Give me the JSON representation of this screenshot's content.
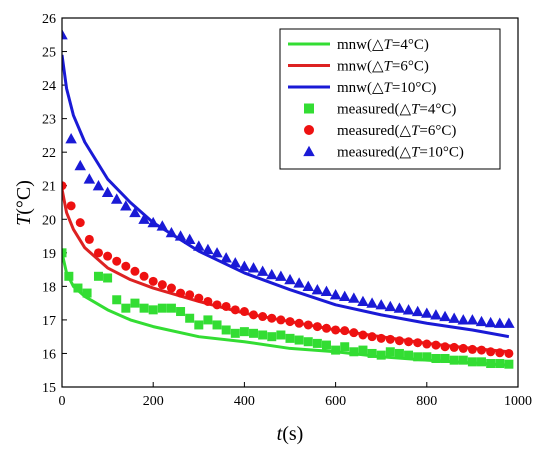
{
  "chart_data": {
    "type": "scatter",
    "xlabel": "t(s)",
    "xlabel_var": "t",
    "xlabel_unit": "(s)",
    "ylabel": "T(°C)",
    "ylabel_var": "T",
    "ylabel_unit": "(°C)",
    "xlim": [
      0,
      1000
    ],
    "ylim": [
      15,
      26
    ],
    "xticks": [
      0,
      200,
      400,
      600,
      800,
      1000
    ],
    "yticks": [
      15,
      16,
      17,
      18,
      19,
      20,
      21,
      22,
      23,
      24,
      25,
      26
    ],
    "grid": false,
    "legend_position": "top-right",
    "series": [
      {
        "name": "mnw(△T=4°C)",
        "prefix": "mnw(△",
        "var": "T",
        "suffix": "=4°C)",
        "kind": "line",
        "color": "#33dd33",
        "x": [
          0,
          10,
          25,
          50,
          100,
          150,
          200,
          300,
          400,
          500,
          600,
          700,
          800,
          900,
          980
        ],
        "y": [
          19.0,
          18.4,
          18.0,
          17.7,
          17.3,
          17.0,
          16.8,
          16.5,
          16.35,
          16.15,
          16.05,
          15.9,
          15.8,
          15.72,
          15.65
        ]
      },
      {
        "name": "mnw(△T=6°C)",
        "prefix": "mnw(△",
        "var": "T",
        "suffix": "=6°C)",
        "kind": "line",
        "color": "#dd2222",
        "x": [
          0,
          10,
          25,
          50,
          100,
          150,
          200,
          300,
          400,
          500,
          600,
          700,
          800,
          900,
          980
        ],
        "y": [
          20.9,
          20.2,
          19.7,
          19.15,
          18.55,
          18.2,
          17.95,
          17.55,
          17.2,
          16.95,
          16.7,
          16.5,
          16.3,
          16.15,
          16.05
        ]
      },
      {
        "name": "mnw(△T=10°C)",
        "prefix": "mnw(△",
        "var": "T",
        "suffix": "=10°C)",
        "kind": "line",
        "color": "#1a1ad6",
        "x": [
          0,
          10,
          25,
          50,
          100,
          150,
          200,
          300,
          400,
          500,
          600,
          700,
          800,
          900,
          980
        ],
        "y": [
          24.9,
          23.9,
          23.1,
          22.3,
          21.2,
          20.5,
          19.9,
          19.05,
          18.4,
          17.9,
          17.45,
          17.15,
          16.9,
          16.7,
          16.5
        ]
      },
      {
        "name": "measured(△T=4°C)",
        "prefix": "measured(△",
        "var": "T",
        "suffix": "=4°C)",
        "kind": "square",
        "color": "#33dd33",
        "x": [
          0,
          15,
          35,
          55,
          80,
          100,
          120,
          140,
          160,
          180,
          200,
          220,
          240,
          260,
          280,
          300,
          320,
          340,
          360,
          380,
          400,
          420,
          440,
          460,
          480,
          500,
          520,
          540,
          560,
          580,
          600,
          620,
          640,
          660,
          680,
          700,
          720,
          740,
          760,
          780,
          800,
          820,
          840,
          860,
          880,
          900,
          920,
          940,
          960,
          980
        ],
        "y": [
          19.0,
          18.3,
          17.95,
          17.8,
          18.3,
          18.25,
          17.6,
          17.35,
          17.5,
          17.35,
          17.3,
          17.35,
          17.35,
          17.25,
          17.05,
          16.85,
          17.0,
          16.85,
          16.7,
          16.6,
          16.65,
          16.6,
          16.55,
          16.5,
          16.55,
          16.45,
          16.4,
          16.35,
          16.3,
          16.25,
          16.1,
          16.2,
          16.05,
          16.1,
          16.0,
          15.95,
          16.05,
          16.0,
          15.95,
          15.9,
          15.9,
          15.85,
          15.85,
          15.8,
          15.8,
          15.75,
          15.75,
          15.7,
          15.7,
          15.68
        ]
      },
      {
        "name": "measured(△T=6°C)",
        "prefix": "measured(△",
        "var": "T",
        "suffix": "=6°C)",
        "kind": "circle",
        "color": "#ee1111",
        "x": [
          0,
          20,
          40,
          60,
          80,
          100,
          120,
          140,
          160,
          180,
          200,
          220,
          240,
          260,
          280,
          300,
          320,
          340,
          360,
          380,
          400,
          420,
          440,
          460,
          480,
          500,
          520,
          540,
          560,
          580,
          600,
          620,
          640,
          660,
          680,
          700,
          720,
          740,
          760,
          780,
          800,
          820,
          840,
          860,
          880,
          900,
          920,
          940,
          960,
          980
        ],
        "y": [
          21.0,
          20.4,
          19.9,
          19.4,
          19.0,
          18.9,
          18.75,
          18.6,
          18.45,
          18.3,
          18.15,
          18.05,
          17.95,
          17.8,
          17.75,
          17.65,
          17.55,
          17.45,
          17.4,
          17.3,
          17.25,
          17.15,
          17.1,
          17.05,
          17.0,
          16.95,
          16.9,
          16.85,
          16.8,
          16.75,
          16.7,
          16.68,
          16.62,
          16.55,
          16.5,
          16.45,
          16.42,
          16.38,
          16.35,
          16.32,
          16.28,
          16.25,
          16.2,
          16.18,
          16.15,
          16.12,
          16.1,
          16.05,
          16.02,
          16.0
        ]
      },
      {
        "name": "measured(△T=10°C)",
        "prefix": "measured(△",
        "var": "T",
        "suffix": "=10°C)",
        "kind": "triangle",
        "color": "#1a1ad6",
        "x": [
          0,
          20,
          40,
          60,
          80,
          100,
          120,
          140,
          160,
          180,
          200,
          220,
          240,
          260,
          280,
          300,
          320,
          340,
          360,
          380,
          400,
          420,
          440,
          460,
          480,
          500,
          520,
          540,
          560,
          580,
          600,
          620,
          640,
          660,
          680,
          700,
          720,
          740,
          760,
          780,
          800,
          820,
          840,
          860,
          880,
          900,
          920,
          940,
          960,
          980
        ],
        "y": [
          25.5,
          22.4,
          21.6,
          21.2,
          21.0,
          20.8,
          20.6,
          20.4,
          20.2,
          20.0,
          19.9,
          19.8,
          19.6,
          19.5,
          19.4,
          19.2,
          19.1,
          19.0,
          18.85,
          18.7,
          18.6,
          18.55,
          18.45,
          18.35,
          18.3,
          18.2,
          18.1,
          18.0,
          17.9,
          17.85,
          17.75,
          17.7,
          17.65,
          17.55,
          17.5,
          17.45,
          17.4,
          17.35,
          17.3,
          17.25,
          17.2,
          17.15,
          17.1,
          17.05,
          17.0,
          17.0,
          16.95,
          16.92,
          16.9,
          16.9
        ]
      }
    ]
  }
}
